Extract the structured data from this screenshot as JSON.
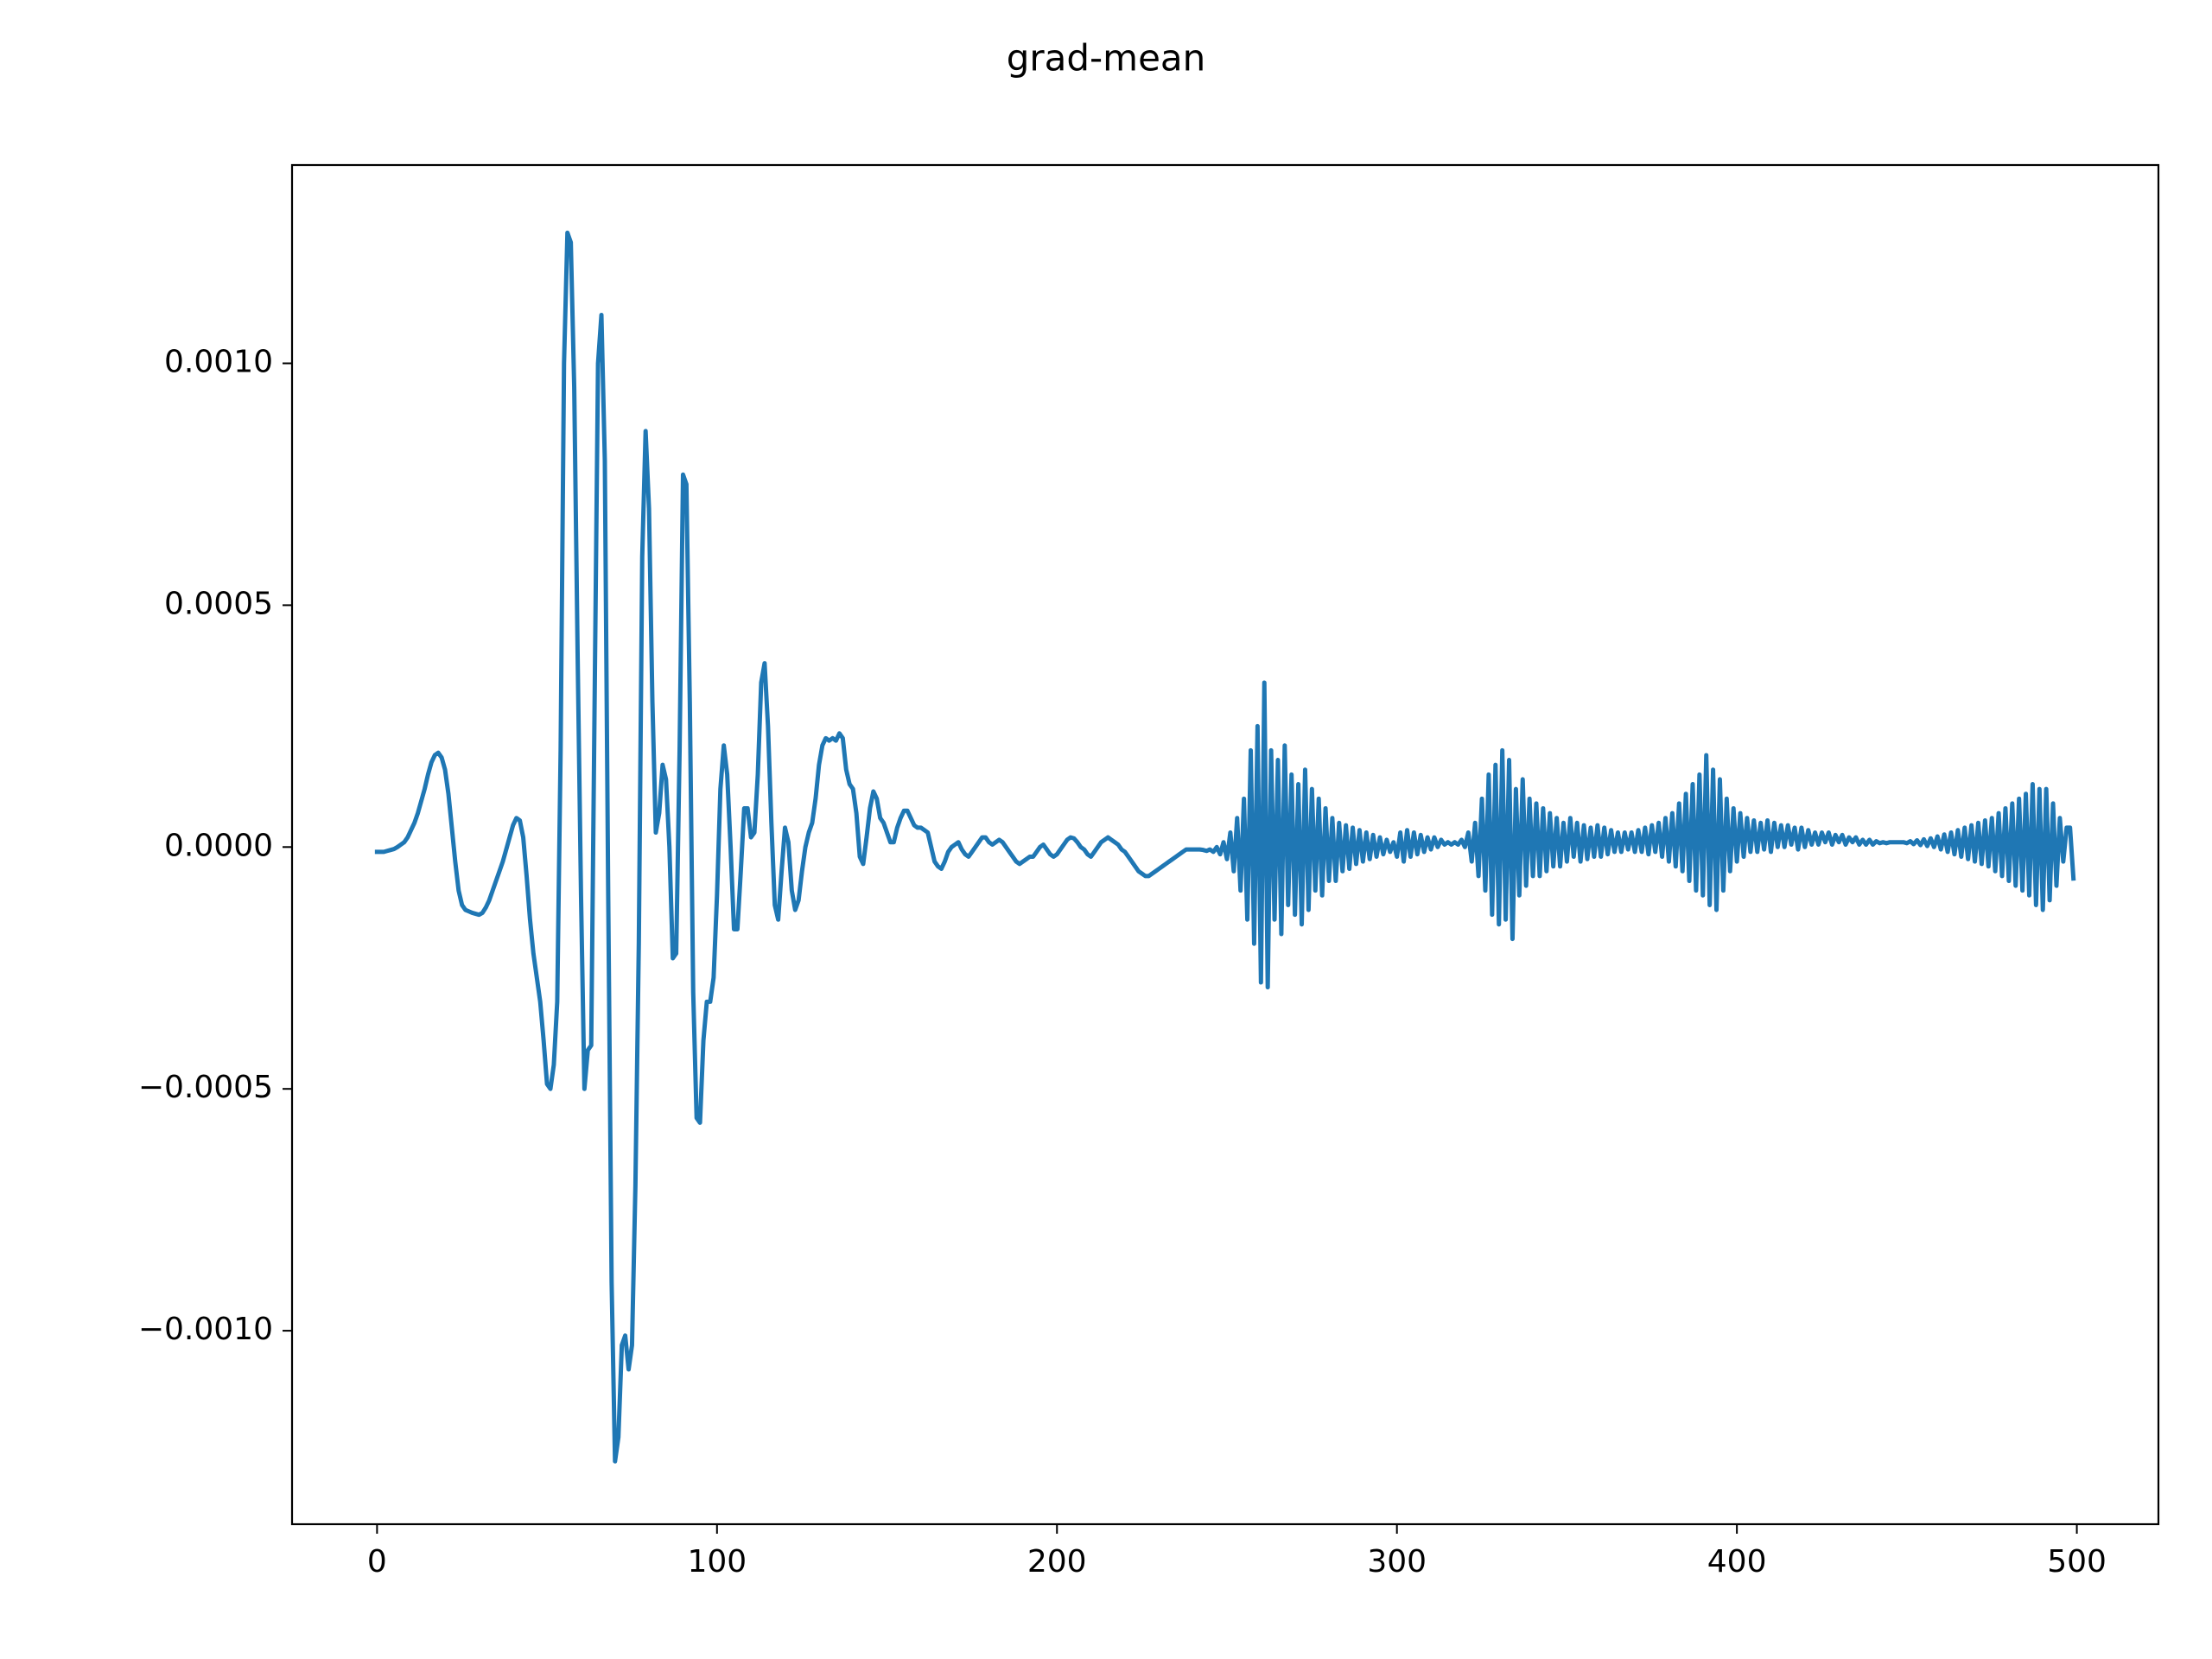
{
  "chart_data": {
    "type": "line",
    "title": "grad-mean",
    "x": [
      0,
      1,
      2,
      3,
      4,
      5,
      6,
      7,
      8,
      9,
      10,
      11,
      12,
      13,
      14,
      15,
      16,
      17,
      18,
      19,
      20,
      21,
      22,
      23,
      24,
      25,
      26,
      27,
      28,
      29,
      30,
      31,
      32,
      33,
      34,
      35,
      36,
      37,
      38,
      39,
      40,
      41,
      42,
      43,
      44,
      45,
      46,
      47,
      48,
      49,
      50,
      51,
      52,
      53,
      54,
      55,
      56,
      57,
      58,
      59,
      60,
      61,
      62,
      63,
      64,
      65,
      66,
      67,
      68,
      69,
      70,
      71,
      72,
      73,
      74,
      75,
      76,
      77,
      78,
      79,
      80,
      81,
      82,
      83,
      84,
      85,
      86,
      87,
      88,
      89,
      90,
      91,
      92,
      93,
      94,
      95,
      96,
      97,
      98,
      99,
      100,
      101,
      102,
      103,
      104,
      105,
      106,
      107,
      108,
      109,
      110,
      111,
      112,
      113,
      114,
      115,
      116,
      117,
      118,
      119,
      120,
      121,
      122,
      123,
      124,
      125,
      126,
      127,
      128,
      129,
      130,
      131,
      132,
      133,
      134,
      135,
      136,
      137,
      138,
      139,
      140,
      141,
      142,
      143,
      144,
      145,
      146,
      147,
      148,
      149,
      150,
      151,
      152,
      153,
      154,
      155,
      156,
      157,
      158,
      159,
      160,
      161,
      162,
      163,
      164,
      165,
      166,
      167,
      168,
      169,
      170,
      171,
      172,
      173,
      174,
      175,
      176,
      177,
      178,
      179,
      180,
      181,
      182,
      183,
      184,
      185,
      186,
      187,
      188,
      189,
      190,
      191,
      192,
      193,
      194,
      195,
      196,
      197,
      198,
      199,
      200,
      201,
      202,
      203,
      204,
      205,
      206,
      207,
      208,
      209,
      210,
      211,
      212,
      213,
      214,
      215,
      216,
      217,
      218,
      219,
      220,
      221,
      222,
      223,
      224,
      225,
      226,
      227,
      228,
      229,
      230,
      231,
      232,
      233,
      234,
      235,
      236,
      237,
      238,
      239,
      240,
      241,
      242,
      243,
      244,
      245,
      246,
      247,
      248,
      249,
      250,
      251,
      252,
      253,
      254,
      255,
      256,
      257,
      258,
      259,
      260,
      261,
      262,
      263,
      264,
      265,
      266,
      267,
      268,
      269,
      270,
      271,
      272,
      273,
      274,
      275,
      276,
      277,
      278,
      279,
      280,
      281,
      282,
      283,
      284,
      285,
      286,
      287,
      288,
      289,
      290,
      291,
      292,
      293,
      294,
      295,
      296,
      297,
      298,
      299,
      300,
      301,
      302,
      303,
      304,
      305,
      306,
      307,
      308,
      309,
      310,
      311,
      312,
      313,
      314,
      315,
      316,
      317,
      318,
      319,
      320,
      321,
      322,
      323,
      324,
      325,
      326,
      327,
      328,
      329,
      330,
      331,
      332,
      333,
      334,
      335,
      336,
      337,
      338,
      339,
      340,
      341,
      342,
      343,
      344,
      345,
      346,
      347,
      348,
      349,
      350,
      351,
      352,
      353,
      354,
      355,
      356,
      357,
      358,
      359,
      360,
      361,
      362,
      363,
      364,
      365,
      366,
      367,
      368,
      369,
      370,
      371,
      372,
      373,
      374,
      375,
      376,
      377,
      378,
      379,
      380,
      381,
      382,
      383,
      384,
      385,
      386,
      387,
      388,
      389,
      390,
      391,
      392,
      393,
      394,
      395,
      396,
      397,
      398,
      399,
      400,
      401,
      402,
      403,
      404,
      405,
      406,
      407,
      408,
      409,
      410,
      411,
      412,
      413,
      414,
      415,
      416,
      417,
      418,
      419,
      420,
      421,
      422,
      423,
      424,
      425,
      426,
      427,
      428,
      429,
      430,
      431,
      432,
      433,
      434,
      435,
      436,
      437,
      438,
      439,
      440,
      441,
      442,
      443,
      444,
      445,
      446,
      447,
      448,
      449,
      450,
      451,
      452,
      453,
      454,
      455,
      456,
      457,
      458,
      459,
      460,
      461,
      462,
      463,
      464,
      465,
      466,
      467,
      468,
      469,
      470,
      471,
      472,
      473,
      474,
      475,
      476,
      477,
      478,
      479,
      480,
      481,
      482,
      483,
      484,
      485,
      486,
      487,
      488,
      489,
      490,
      491,
      492,
      493,
      494,
      495,
      496,
      497,
      498,
      499
    ],
    "values": [
      -1e-05,
      -1e-05,
      -1e-05,
      -8e-06,
      -6e-06,
      -4e-06,
      0,
      5e-06,
      1e-05,
      2e-05,
      3.5e-05,
      5e-05,
      7e-05,
      9.5e-05,
      0.00012,
      0.00015,
      0.000175,
      0.00019,
      0.000195,
      0.000185,
      0.00016,
      0.00011,
      4e-05,
      -3e-05,
      -9e-05,
      -0.00012,
      -0.00013,
      -0.000133,
      -0.000136,
      -0.000138,
      -0.00014,
      -0.000136,
      -0.000125,
      -0.00011,
      -9e-05,
      -7e-05,
      -5e-05,
      -3e-05,
      -5e-06,
      2e-05,
      4.5e-05,
      6e-05,
      5.5e-05,
      2e-05,
      -6e-05,
      -0.00015,
      -0.00022,
      -0.00027,
      -0.00032,
      -0.0004,
      -0.00049,
      -0.0005,
      -0.00045,
      -0.00032,
      0.0002,
      0.001,
      0.00127,
      0.00125,
      0.00095,
      0.0004,
      -0.0001,
      -0.0005,
      -0.00042,
      -0.00041,
      0.0003,
      0.001,
      0.0011,
      0.0008,
      -0.0001,
      -0.0009,
      -0.00127,
      -0.00122,
      -0.00103,
      -0.00101,
      -0.00108,
      -0.00103,
      -0.0007,
      -0.0002,
      0.0006,
      0.00086,
      0.0007,
      0.0003,
      3e-05,
      7e-05,
      0.00017,
      0.00014,
      0,
      -0.00023,
      -0.00022,
      0.0002,
      0.00077,
      0.00075,
      0.0003,
      -0.0003,
      -0.00056,
      -0.00057,
      -0.0004,
      -0.00032,
      -0.00032,
      -0.00027,
      -0.0001,
      0.00012,
      0.00021,
      0.00015,
      0,
      -0.00017,
      -0.00017,
      -5e-05,
      8e-05,
      8e-05,
      2e-05,
      3e-05,
      0.00015,
      0.00034,
      0.00038,
      0.00025,
      5e-05,
      -0.00012,
      -0.00015,
      -5e-05,
      4e-05,
      1e-05,
      -9e-05,
      -0.00013,
      -0.00011,
      -5e-05,
      0,
      3e-05,
      5e-05,
      0.0001,
      0.00017,
      0.00021,
      0.000225,
      0.00022,
      0.000225,
      0.00022,
      0.000235,
      0.000225,
      0.00016,
      0.00013,
      0.00012,
      7e-05,
      -2e-05,
      -3.5e-05,
      2e-05,
      8e-05,
      0.000115,
      0.0001,
      6e-05,
      5e-05,
      3e-05,
      1e-05,
      1e-05,
      4e-05,
      6e-05,
      7.5e-05,
      7.5e-05,
      6e-05,
      4.5e-05,
      4e-05,
      4e-05,
      3.5e-05,
      3e-05,
      0,
      -3e-05,
      -4e-05,
      -4.5e-05,
      -3e-05,
      -1e-05,
      0,
      5e-06,
      1e-05,
      -5e-06,
      -1.5e-05,
      -2e-05,
      -1e-05,
      0,
      1e-05,
      2e-05,
      2e-05,
      1e-05,
      5e-06,
      1e-05,
      1.5e-05,
      1e-05,
      0,
      -1e-05,
      -2e-05,
      -3e-05,
      -3.5e-05,
      -3e-05,
      -2.5e-05,
      -2e-05,
      -2e-05,
      -1e-05,
      0,
      5e-06,
      -5e-06,
      -1.5e-05,
      -2e-05,
      -1.5e-05,
      -5e-06,
      5e-06,
      1.5e-05,
      2e-05,
      1.8e-05,
      1e-05,
      0,
      -5e-06,
      -1.5e-05,
      -2e-05,
      -1e-05,
      0,
      1e-05,
      1.5e-05,
      2e-05,
      1.5e-05,
      1e-05,
      5e-06,
      -5e-06,
      -1e-05,
      -2e-05,
      -3e-05,
      -4e-05,
      -5e-05,
      -5.5e-05,
      -6e-05,
      -6e-05,
      -5.5e-05,
      -5e-05,
      -4.5e-05,
      -4e-05,
      -3.5e-05,
      -3e-05,
      -2.5e-05,
      -2e-05,
      -1.5e-05,
      -1e-05,
      -5e-06,
      -5e-06,
      -5e-06,
      -5e-06,
      -5e-06,
      -6e-06,
      -8e-06,
      -5e-06,
      -1e-05,
      0,
      -1.5e-05,
      1e-05,
      -2.5e-05,
      3e-05,
      -5e-05,
      6e-05,
      -9e-05,
      0.0001,
      -0.00015,
      0.0002,
      -0.0002,
      0.00025,
      -0.00028,
      0.00034,
      -0.00029,
      0.0002,
      -0.00015,
      0.00018,
      -0.00018,
      0.00021,
      -0.00012,
      0.00015,
      -0.00014,
      0.00013,
      -0.00016,
      0.00016,
      -0.00013,
      0.00012,
      -9e-05,
      0.0001,
      -0.0001,
      8e-05,
      -7e-05,
      6e-05,
      -7e-05,
      5e-05,
      -5e-05,
      4.5e-05,
      -4.5e-05,
      4e-05,
      -3.5e-05,
      3.5e-05,
      -3e-05,
      3e-05,
      -2.5e-05,
      2.5e-05,
      -2e-05,
      2e-05,
      -1.5e-05,
      1.5e-05,
      -1e-05,
      1e-05,
      -2e-05,
      3e-05,
      -3e-05,
      3.5e-05,
      -2e-05,
      3e-05,
      -1.5e-05,
      2.5e-05,
      -1e-05,
      2e-05,
      -5e-06,
      2e-05,
      0,
      1.5e-05,
      5e-06,
      1e-05,
      5e-06,
      1e-05,
      5e-06,
      1.5e-05,
      0,
      3e-05,
      -3e-05,
      5e-05,
      -6e-05,
      0.0001,
      -9e-05,
      0.00015,
      -0.00014,
      0.00017,
      -0.00016,
      0.0002,
      -0.00015,
      0.00018,
      -0.00019,
      0.00012,
      -0.0001,
      0.00014,
      -8e-05,
      0.0001,
      -6e-05,
      9e-05,
      -6e-05,
      8e-05,
      -5e-05,
      7e-05,
      -4e-05,
      6e-05,
      -4e-05,
      5e-05,
      -3e-05,
      6e-05,
      -2e-05,
      5e-05,
      -3e-05,
      4.5e-05,
      -2.5e-05,
      4e-05,
      -2e-05,
      4.5e-05,
      -2e-05,
      4e-05,
      -1.5e-05,
      3.5e-05,
      -1e-05,
      3e-05,
      -1e-05,
      3e-05,
      -5e-06,
      3e-05,
      -1e-05,
      3.5e-05,
      -1e-05,
      4e-05,
      -1.5e-05,
      4.5e-05,
      -1e-05,
      5e-05,
      -2e-05,
      6e-05,
      -3e-05,
      7e-05,
      -4e-05,
      9e-05,
      -5e-05,
      0.00011,
      -7e-05,
      0.00013,
      -9e-05,
      0.00015,
      -0.0001,
      0.00019,
      -0.00012,
      0.00016,
      -0.00013,
      0.00014,
      -9e-05,
      0.0001,
      -5e-05,
      8e-05,
      -3e-05,
      7e-05,
      -2e-05,
      6e-05,
      -1e-05,
      5.5e-05,
      -1e-05,
      5e-05,
      -5e-06,
      5.5e-05,
      -1e-05,
      5e-05,
      0,
      4.5e-05,
      0,
      4.5e-05,
      5e-06,
      4e-05,
      -5e-06,
      4e-05,
      0,
      3.5e-05,
      5e-06,
      3e-05,
      5e-06,
      3e-05,
      1e-05,
      3e-05,
      5e-06,
      2.5e-05,
      1e-05,
      2.5e-05,
      5e-06,
      2e-05,
      1e-05,
      2e-05,
      5e-06,
      1.5e-05,
      5e-06,
      1.5e-05,
      5e-06,
      1.2e-05,
      8e-06,
      1e-05,
      8e-06,
      1e-05,
      1e-05,
      1e-05,
      1e-05,
      1e-05,
      8e-06,
      1.2e-05,
      6e-06,
      1.4e-05,
      4e-06,
      1.6e-05,
      2e-06,
      1.8e-05,
      0,
      2.2e-05,
      -5e-06,
      2.6e-05,
      -1e-05,
      3e-05,
      -1.5e-05,
      3.5e-05,
      -2e-05,
      4e-05,
      -2.5e-05,
      4.5e-05,
      -3e-05,
      5e-05,
      -3.5e-05,
      5.5e-05,
      -4e-05,
      6e-05,
      -5e-05,
      7e-05,
      -6e-05,
      8e-05,
      -7e-05,
      9e-05,
      -8e-05,
      0.0001,
      -9e-05,
      0.00011,
      -0.0001,
      0.00013,
      -0.00012,
      0.00012,
      -0.00013,
      0.00012,
      -0.00011,
      9e-05,
      -8e-05,
      6e-05,
      -3e-05,
      4e-05,
      4e-05,
      -6.5e-05
    ],
    "color": "#1f77b4",
    "xlim": [
      -25,
      524
    ],
    "xticks": [
      0,
      100,
      200,
      300,
      400,
      500
    ],
    "ylim": [
      -0.0014,
      0.00141
    ],
    "yticks": [
      {
        "value": -0.001,
        "label": "−0.0010"
      },
      {
        "value": -0.0005,
        "label": "−0.0005"
      },
      {
        "value": 0,
        "label": "0.0000"
      },
      {
        "value": 0.0005,
        "label": "0.0005"
      },
      {
        "value": 0.001,
        "label": "0.0010"
      }
    ],
    "grid": false
  }
}
